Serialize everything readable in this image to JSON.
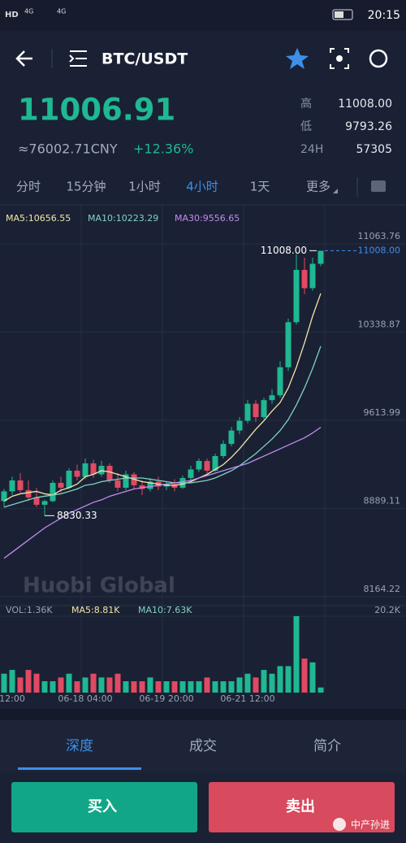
{
  "status_bar": {
    "left": [
      "HD",
      "4G",
      "4G"
    ],
    "time": "20:15"
  },
  "header": {
    "title": "BTC/USDT"
  },
  "ticker": {
    "price": "11006.91",
    "cny": "≈76002.71CNY",
    "change": "+12.36%",
    "stats": [
      {
        "label": "高",
        "value": "11008.00"
      },
      {
        "label": "低",
        "value": "9793.26"
      },
      {
        "label": "24H",
        "value": "57305"
      }
    ]
  },
  "intervals": [
    "分时",
    "15分钟",
    "1小时",
    "4小时",
    "1天",
    "更多"
  ],
  "active_interval": 3,
  "watermark": "Huobi Global",
  "chart_data": {
    "type": "candlestick",
    "categories": [
      null,
      "12:00",
      null,
      null,
      null,
      null,
      null,
      null,
      null,
      null,
      "06-18 04:00",
      null,
      null,
      null,
      null,
      null,
      null,
      null,
      null,
      null,
      "06-19 20:00",
      null,
      null,
      null,
      null,
      null,
      null,
      null,
      null,
      null,
      "06-21 12:00",
      null,
      null,
      null,
      null,
      null,
      null,
      null,
      null,
      null
    ],
    "ohlc": [
      [
        8950,
        9050,
        8900,
        9030
      ],
      [
        9030,
        9150,
        9000,
        9120
      ],
      [
        9120,
        9180,
        9020,
        9040
      ],
      [
        9040,
        9120,
        8950,
        8980
      ],
      [
        8980,
        9060,
        8900,
        8920
      ],
      [
        8920,
        8960,
        8830.33,
        8950
      ],
      [
        8950,
        9120,
        8940,
        9100
      ],
      [
        9100,
        9150,
        9020,
        9060
      ],
      [
        9060,
        9220,
        9050,
        9200
      ],
      [
        9200,
        9250,
        9120,
        9150
      ],
      [
        9150,
        9300,
        9130,
        9260
      ],
      [
        9260,
        9290,
        9140,
        9170
      ],
      [
        9170,
        9280,
        9150,
        9240
      ],
      [
        9240,
        9260,
        9100,
        9120
      ],
      [
        9120,
        9180,
        9030,
        9060
      ],
      [
        9060,
        9200,
        9040,
        9170
      ],
      [
        9170,
        9190,
        9050,
        9080
      ],
      [
        9080,
        9120,
        9000,
        9050
      ],
      [
        9050,
        9140,
        9030,
        9110
      ],
      [
        9110,
        9150,
        9040,
        9070
      ],
      [
        9070,
        9110,
        9040,
        9090
      ],
      [
        9090,
        9130,
        9030,
        9060
      ],
      [
        9060,
        9160,
        9050,
        9140
      ],
      [
        9140,
        9240,
        9120,
        9210
      ],
      [
        9210,
        9300,
        9190,
        9280
      ],
      [
        9280,
        9300,
        9180,
        9200
      ],
      [
        9200,
        9340,
        9190,
        9320
      ],
      [
        9320,
        9450,
        9300,
        9420
      ],
      [
        9420,
        9560,
        9400,
        9530
      ],
      [
        9530,
        9640,
        9500,
        9610
      ],
      [
        9610,
        9780,
        9590,
        9750
      ],
      [
        9750,
        9780,
        9600,
        9640
      ],
      [
        9640,
        9800,
        9620,
        9780
      ],
      [
        9780,
        9870,
        9750,
        9820
      ],
      [
        9820,
        10100,
        9800,
        10050
      ],
      [
        10050,
        10450,
        10020,
        10420
      ],
      [
        10420,
        10980,
        10400,
        10850
      ],
      [
        10850,
        10950,
        10650,
        10700
      ],
      [
        10700,
        10950,
        10680,
        10900
      ],
      [
        10900,
        11008,
        10880,
        11006.91
      ]
    ],
    "up_color": "#1fb892",
    "down_color": "#e04a62",
    "ma_lines": [
      {
        "name": "MA5:10656.55",
        "color": "#f3e6a6",
        "values": [
          8950,
          8990,
          9010,
          9020,
          9030,
          9010,
          9000,
          9040,
          9060,
          9090,
          9150,
          9170,
          9200,
          9190,
          9170,
          9150,
          9130,
          9110,
          9100,
          9090,
          9080,
          9080,
          9090,
          9110,
          9140,
          9170,
          9210,
          9250,
          9310,
          9380,
          9460,
          9540,
          9610,
          9690,
          9760,
          9880,
          10050,
          10250,
          10470,
          10656.55
        ]
      },
      {
        "name": "MA10:10223.29",
        "color": "#7fd3c4",
        "values": [
          8900,
          8920,
          8940,
          8960,
          8980,
          8990,
          9000,
          9010,
          9030,
          9050,
          9080,
          9090,
          9110,
          9120,
          9130,
          9140,
          9140,
          9140,
          9130,
          9120,
          9110,
          9100,
          9100,
          9100,
          9110,
          9120,
          9140,
          9170,
          9200,
          9240,
          9290,
          9340,
          9400,
          9460,
          9530,
          9620,
          9740,
          9880,
          10040,
          10223.29
        ]
      },
      {
        "name": "MA30:9556.65",
        "color": "#c38cf0",
        "values": [
          8480,
          8530,
          8580,
          8630,
          8680,
          8730,
          8770,
          8810,
          8850,
          8880,
          8910,
          8940,
          8960,
          8990,
          9010,
          9030,
          9050,
          9060,
          9070,
          9080,
          9090,
          9100,
          9110,
          9120,
          9140,
          9160,
          9180,
          9200,
          9220,
          9240,
          9260,
          9290,
          9320,
          9350,
          9380,
          9410,
          9440,
          9470,
          9510,
          9556.65
        ]
      }
    ],
    "ylim": [
      8104.5,
      11344.3
    ],
    "yticks": [
      11063.76,
      10338.87,
      9613.99,
      8889.11,
      8164.22
    ],
    "high_label": {
      "value": 11008,
      "label": "11008.00"
    },
    "grid": true,
    "volume": {
      "values": [
        5,
        6,
        4,
        6,
        5,
        3,
        3,
        4,
        5,
        3,
        4,
        5,
        4,
        4,
        5,
        3,
        3,
        3,
        4,
        3,
        3,
        3,
        3,
        3,
        3,
        4,
        3,
        3,
        3,
        4,
        5,
        4,
        6,
        5,
        7,
        7,
        20.2,
        9,
        8,
        1.36
      ],
      "ylim": [
        0,
        20.2
      ],
      "yticks": [
        {
          "value": 20.2,
          "label": "20.2K"
        }
      ],
      "legend": [
        "VOL:1.36K",
        "MA5:8.81K",
        "MA10:7.63K"
      ]
    }
  },
  "tabs": [
    "深度",
    "成交",
    "简介"
  ],
  "active_tab": 0,
  "buttons": {
    "buy": "买入",
    "sell": "卖出"
  },
  "footer_note": "中产孙进"
}
